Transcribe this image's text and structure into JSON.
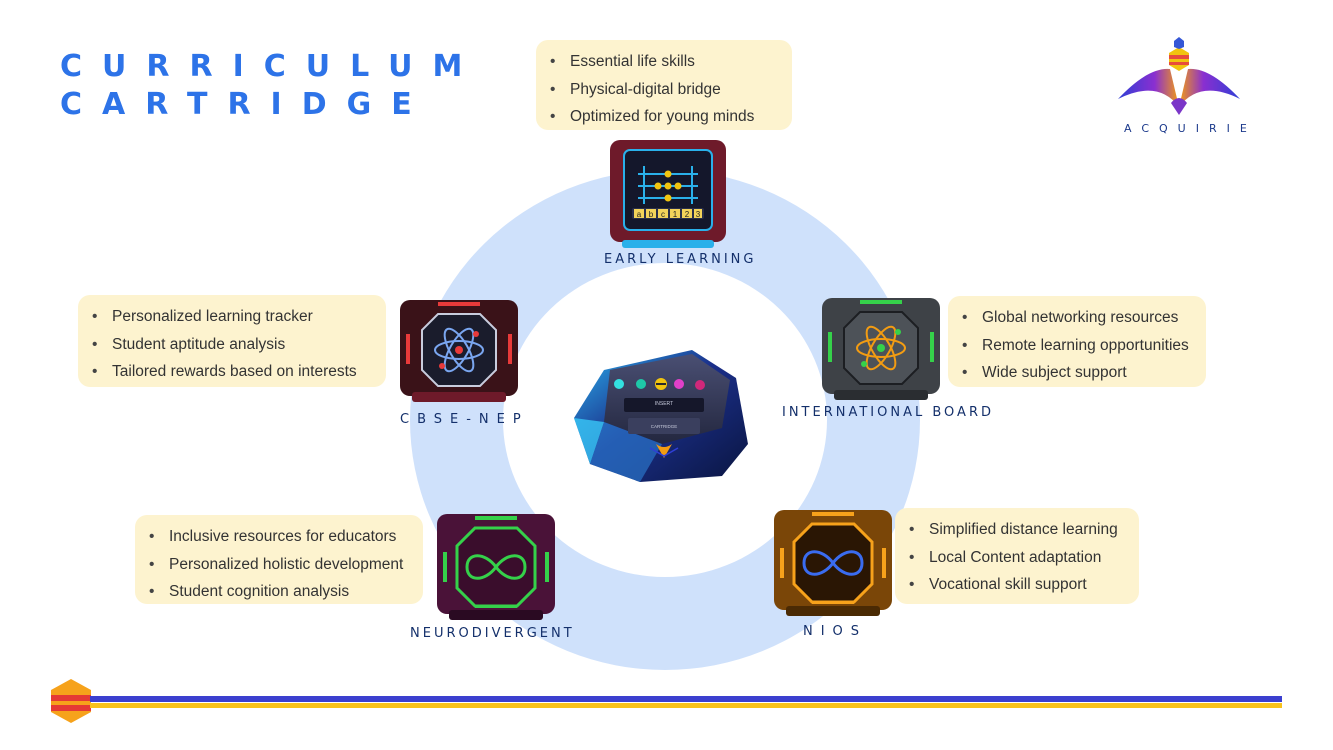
{
  "title": {
    "line1": "CURRICULUM",
    "line2": "CARTRIDGE"
  },
  "logo": {
    "text": "ACQUIRIE"
  },
  "hub": {
    "slot_label": "INSERT",
    "slot_sub": "CARTRIDGE"
  },
  "cartridges": {
    "early_learning": {
      "label": "EARLY LEARNING",
      "icon_text": [
        "a",
        "b",
        "c",
        "1",
        "2",
        "3"
      ],
      "features": [
        "Essential life skills",
        "Physical-digital bridge",
        "Optimized for young minds"
      ]
    },
    "cbse_nep": {
      "label": "CBSE-NEP",
      "features": [
        "Personalized learning tracker",
        "Student aptitude analysis",
        "Tailored rewards based on interests"
      ]
    },
    "international_board": {
      "label": "INTERNATIONAL BOARD",
      "features": [
        "Global networking resources",
        "Remote learning opportunities",
        "Wide subject support"
      ]
    },
    "neurodivergent": {
      "label": "NEURODIVERGENT",
      "features": [
        "Inclusive resources for educators",
        "Personalized holistic development",
        "Student cognition analysis"
      ]
    },
    "nios": {
      "label": "NIOS",
      "features": [
        "Simplified distance learning",
        "Local Content adaptation",
        "Vocational skill support"
      ]
    }
  },
  "colors": {
    "title_blue": "#2d73e8",
    "ring": "#cfe1fb",
    "card_bg": "#fdf3cf",
    "label_navy": "#14306b",
    "bar_blue": "#3b3fcf",
    "bar_yellow": "#f8c21c"
  }
}
